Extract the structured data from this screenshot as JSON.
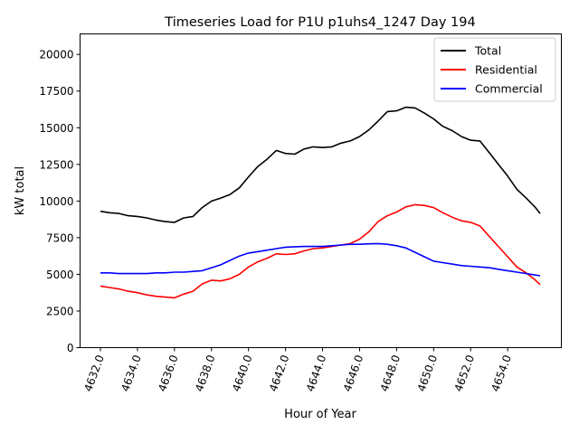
{
  "chart_data": {
    "type": "line",
    "title": "Timeseries Load for P1U p1uhs4_1247  Day 194",
    "xlabel": "Hour of Year",
    "ylabel": "kW total",
    "xlim": [
      4630.9,
      4656.9
    ],
    "ylim": [
      0,
      21400
    ],
    "xticks": [
      4632,
      4634,
      4636,
      4638,
      4640,
      4642,
      4644,
      4646,
      4648,
      4650,
      4652,
      4654
    ],
    "xtick_labels": [
      "4632.0",
      "4634.0",
      "4636.0",
      "4638.0",
      "4640.0",
      "4642.0",
      "4644.0",
      "4646.0",
      "4648.0",
      "4650.0",
      "4652.0",
      "4654.0"
    ],
    "yticks": [
      0,
      2500,
      5000,
      7500,
      10000,
      12500,
      15000,
      17500,
      20000
    ],
    "ytick_labels": [
      "0",
      "2500",
      "5000",
      "7500",
      "10000",
      "12500",
      "15000",
      "17500",
      "20000"
    ],
    "grid": false,
    "legend_position": "top-right",
    "series": [
      {
        "name": "Total",
        "color": "#000000",
        "x": [
          4632,
          4632.5,
          4633,
          4633.5,
          4634,
          4634.5,
          4635,
          4635.5,
          4636,
          4636.5,
          4637,
          4637.5,
          4638,
          4638.5,
          4639,
          4639.5,
          4640,
          4640.5,
          4641,
          4641.5,
          4642,
          4642.5,
          4643,
          4643.5,
          4644,
          4644.5,
          4645,
          4645.5,
          4646,
          4646.5,
          4647,
          4647.5,
          4648,
          4648.5,
          4649,
          4649.5,
          4650,
          4650.5,
          4651,
          4651.5,
          4652,
          4652.5,
          4653,
          4653.5,
          4654,
          4654.5,
          4655,
          4655.5,
          4655.75
        ],
        "values": [
          9300,
          9200,
          9150,
          9000,
          8950,
          8850,
          8700,
          8600,
          8550,
          8850,
          8950,
          9550,
          10000,
          10200,
          10450,
          10900,
          11650,
          12350,
          12850,
          13450,
          13250,
          13200,
          13550,
          13700,
          13650,
          13700,
          13950,
          14100,
          14400,
          14850,
          15450,
          16100,
          16150,
          16400,
          16350,
          16000,
          15600,
          15100,
          14800,
          14400,
          14150,
          14100,
          13300,
          12500,
          11700,
          10800,
          10200,
          9550,
          9150
        ]
      },
      {
        "name": "Residential",
        "color": "#ff0000",
        "x": [
          4632,
          4632.5,
          4633,
          4633.5,
          4634,
          4634.5,
          4635,
          4635.5,
          4636,
          4636.5,
          4637,
          4637.5,
          4638,
          4638.5,
          4639,
          4639.5,
          4640,
          4640.5,
          4641,
          4641.5,
          4642,
          4642.5,
          4643,
          4643.5,
          4644,
          4644.5,
          4645,
          4645.5,
          4646,
          4646.5,
          4647,
          4647.5,
          4648,
          4648.5,
          4649,
          4649.5,
          4650,
          4650.5,
          4651,
          4651.5,
          4652,
          4652.5,
          4653,
          4653.5,
          4654,
          4654.5,
          4655,
          4655.5,
          4655.75
        ],
        "values": [
          4200,
          4100,
          4000,
          3850,
          3750,
          3600,
          3500,
          3450,
          3400,
          3650,
          3850,
          4350,
          4600,
          4550,
          4700,
          5000,
          5500,
          5850,
          6100,
          6400,
          6350,
          6400,
          6600,
          6750,
          6800,
          6900,
          7000,
          7100,
          7400,
          7900,
          8600,
          9000,
          9250,
          9600,
          9750,
          9700,
          9550,
          9200,
          8900,
          8650,
          8550,
          8300,
          7600,
          6900,
          6200,
          5500,
          5100,
          4600,
          4300
        ]
      },
      {
        "name": "Commercial",
        "color": "#0000ff",
        "x": [
          4632,
          4632.5,
          4633,
          4633.5,
          4634,
          4634.5,
          4635,
          4635.5,
          4636,
          4636.5,
          4637,
          4637.5,
          4638,
          4638.5,
          4639,
          4639.5,
          4640,
          4640.5,
          4641,
          4641.5,
          4642,
          4642.5,
          4643,
          4643.5,
          4644,
          4644.5,
          4645,
          4645.5,
          4646,
          4646.5,
          4647,
          4647.5,
          4648,
          4648.5,
          4649,
          4649.5,
          4650,
          4650.5,
          4651,
          4651.5,
          4652,
          4652.5,
          4653,
          4653.5,
          4654,
          4654.5,
          4655,
          4655.5,
          4655.75
        ],
        "values": [
          5100,
          5100,
          5050,
          5050,
          5050,
          5050,
          5100,
          5100,
          5150,
          5150,
          5200,
          5250,
          5450,
          5650,
          5950,
          6250,
          6450,
          6550,
          6650,
          6750,
          6850,
          6880,
          6900,
          6900,
          6900,
          6950,
          7000,
          7050,
          7050,
          7080,
          7100,
          7050,
          6950,
          6800,
          6500,
          6200,
          5900,
          5800,
          5700,
          5600,
          5550,
          5500,
          5450,
          5350,
          5250,
          5150,
          5050,
          4950,
          4900
        ]
      }
    ]
  }
}
